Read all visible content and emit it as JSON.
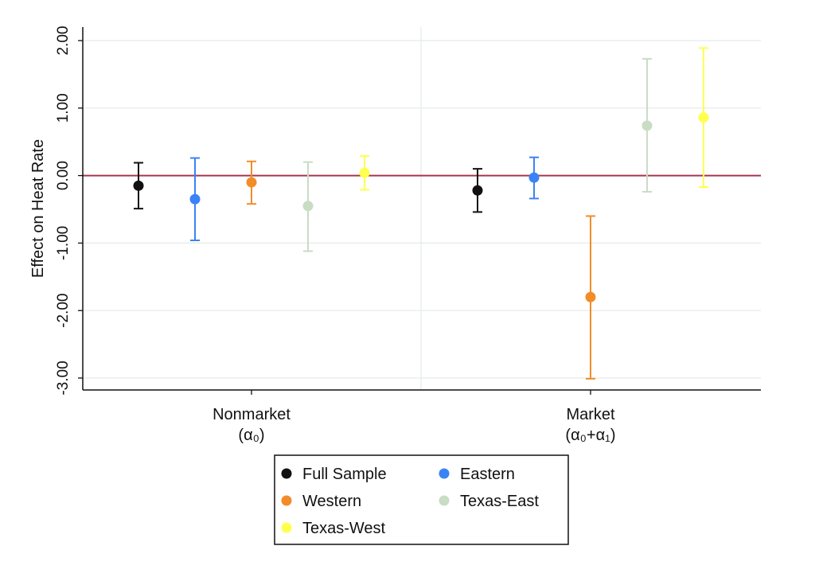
{
  "chart_data": {
    "type": "errorbar",
    "ylabel": "Effect on Heat Rate",
    "ylim": [
      -3.0,
      2.0
    ],
    "yticks": [
      {
        "value": 2.0,
        "label": "2.00"
      },
      {
        "value": 1.0,
        "label": "1.00"
      },
      {
        "value": 0.0,
        "label": "0.00"
      },
      {
        "value": -1.0,
        "label": "-1.00"
      },
      {
        "value": -2.0,
        "label": "-2.00"
      },
      {
        "value": -3.0,
        "label": "-3.00"
      }
    ],
    "groups": [
      {
        "label_line1": "Nonmarket",
        "label_line2": "(α₀)"
      },
      {
        "label_line1": "Market",
        "label_line2": "(α₀+α₁)"
      }
    ],
    "reference_line": 0.0,
    "reference_color": "#a5344f",
    "grid": true,
    "legend_position": "bottom",
    "series": [
      {
        "name": "Full Sample",
        "color": "#111111",
        "points": [
          {
            "estimate": -0.15,
            "low": -0.49,
            "high": 0.19
          },
          {
            "estimate": -0.22,
            "low": -0.54,
            "high": 0.1
          }
        ]
      },
      {
        "name": "Eastern",
        "color": "#3b82f6",
        "points": [
          {
            "estimate": -0.35,
            "low": -0.96,
            "high": 0.26
          },
          {
            "estimate": -0.03,
            "low": -0.34,
            "high": 0.27
          }
        ]
      },
      {
        "name": "Western",
        "color": "#f28c28",
        "points": [
          {
            "estimate": -0.1,
            "low": -0.42,
            "high": 0.21
          },
          {
            "estimate": -1.8,
            "low": -3.01,
            "high": -0.6
          }
        ]
      },
      {
        "name": "Texas-East",
        "color": "#c9dcc4",
        "points": [
          {
            "estimate": -0.45,
            "low": -1.12,
            "high": 0.2
          },
          {
            "estimate": 0.74,
            "low": -0.24,
            "high": 1.73
          }
        ]
      },
      {
        "name": "Texas-West",
        "color": "#ffff4d",
        "points": [
          {
            "estimate": 0.04,
            "low": -0.21,
            "high": 0.29
          },
          {
            "estimate": 0.86,
            "low": -0.17,
            "high": 1.89
          }
        ]
      }
    ]
  }
}
